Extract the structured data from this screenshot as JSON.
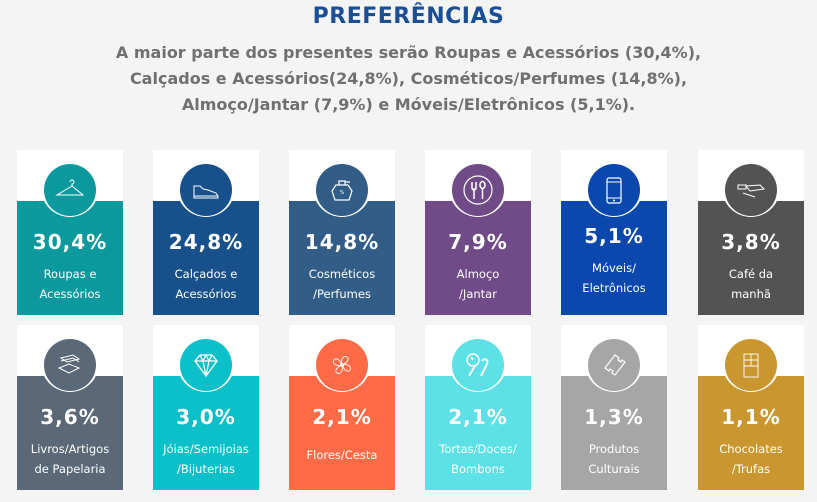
{
  "header": {
    "title": "PREFERÊNCIAS",
    "subtitle_lines": [
      "A maior parte dos presentes serão Roupas e Acessórios (30,4%),",
      "Calçados e Acessórios(24,8%), Cosméticos/Perfumes (14,8%),",
      "Almoço/Jantar (7,9%) e Móveis/Eletrônicos (5,1%)."
    ]
  },
  "cards": [
    {
      "pct": "30,4%",
      "lines": [
        "Roupas e",
        "Acessórios"
      ],
      "color": "#0a9a9e",
      "icon": "hanger-icon"
    },
    {
      "pct": "24,8%",
      "lines": [
        "Calçados e",
        "Acessórios"
      ],
      "color": "#17508a",
      "icon": "sneaker-icon"
    },
    {
      "pct": "14,8%",
      "lines": [
        "Cosméticos",
        "/Perfumes"
      ],
      "color": "#325d86",
      "icon": "perfume-icon"
    },
    {
      "pct": "7,9%",
      "lines": [
        "Almoço",
        "/Jantar"
      ],
      "color": "#704b88",
      "icon": "cutlery-icon"
    },
    {
      "pct": "5,1%",
      "lines": [
        "Móveis/",
        "Eletrônicos"
      ],
      "color": "#0a48ad",
      "icon": "smartphone-icon"
    },
    {
      "pct": "3,8%",
      "lines": [
        "Café da",
        "manhã"
      ],
      "color": "#535353",
      "icon": "breakfast-icon"
    },
    {
      "pct": "3,6%",
      "lines": [
        "Livros/Artigos",
        "de Papelaria"
      ],
      "color": "#5a6878",
      "icon": "books-icon"
    },
    {
      "pct": "3,0%",
      "lines": [
        "Jóias/Semijoias",
        "/Bijuterias"
      ],
      "color": "#0bc0c8",
      "icon": "diamond-icon"
    },
    {
      "pct": "2,1%",
      "lines": [
        "Flores/Cesta"
      ],
      "color": "#ff6b47",
      "icon": "flower-icon"
    },
    {
      "pct": "2,1%",
      "lines": [
        "Tortas/Doces/",
        "Bombons"
      ],
      "color": "#5de0e6",
      "icon": "candy-icon"
    },
    {
      "pct": "1,3%",
      "lines": [
        "Produtos",
        "Culturais"
      ],
      "color": "#a6a6a6",
      "icon": "ticket-icon"
    },
    {
      "pct": "1,1%",
      "lines": [
        "Chocolates",
        "/Trufas"
      ],
      "color": "#c99630",
      "icon": "chocolate-icon"
    }
  ]
}
